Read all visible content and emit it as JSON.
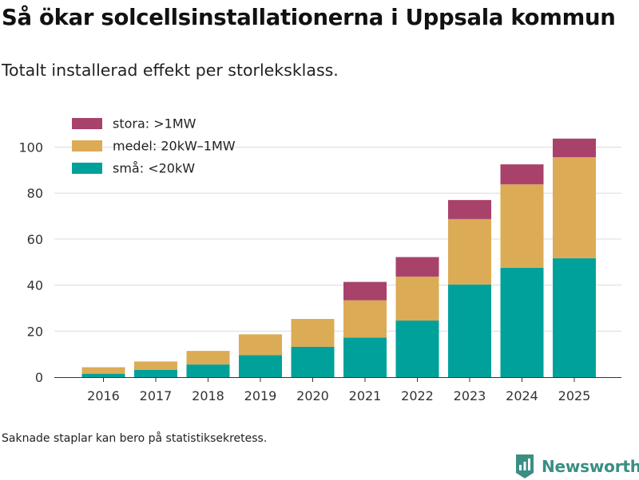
{
  "title": "Så ökar solcellsinstallationerna i Uppsala kommun",
  "subtitle": "Totalt installerad effekt per storleksklass.",
  "footnote": "Saknade staplar kan bero på statistiksekretess.",
  "brand": {
    "name": "Newsworthy",
    "icon": "newsworthy-logo-icon",
    "color": "#3b8e84"
  },
  "chart_data": {
    "type": "bar",
    "stacked": true,
    "title": "Så ökar solcellsinstallationerna i Uppsala kommun",
    "subtitle": "Totalt installerad effekt per storleksklass.",
    "xlabel": "",
    "ylabel": "",
    "ylim": [
      0,
      110
    ],
    "yticks": [
      0,
      20,
      40,
      60,
      80,
      100
    ],
    "grid": true,
    "legend_position": "top-left",
    "categories": [
      "2016",
      "2017",
      "2018",
      "2019",
      "2020",
      "2021",
      "2022",
      "2023",
      "2024",
      "2025"
    ],
    "series": [
      {
        "name": "små: <20kW",
        "color": "#00a19a",
        "values": [
          1.5,
          3.2,
          5.5,
          9.6,
          13.2,
          17.2,
          24.6,
          40.3,
          47.5,
          51.7
        ]
      },
      {
        "name": "medel: 20kW–1MW",
        "color": "#dcab55",
        "values": [
          2.8,
          3.6,
          5.9,
          9.0,
          12.1,
          16.2,
          19.1,
          28.4,
          36.3,
          43.9
        ]
      },
      {
        "name": "stora: >1MW",
        "color": "#a8426b",
        "values": [
          0,
          0,
          0,
          0,
          0,
          8.0,
          8.5,
          8.3,
          8.7,
          8.1
        ]
      }
    ]
  }
}
